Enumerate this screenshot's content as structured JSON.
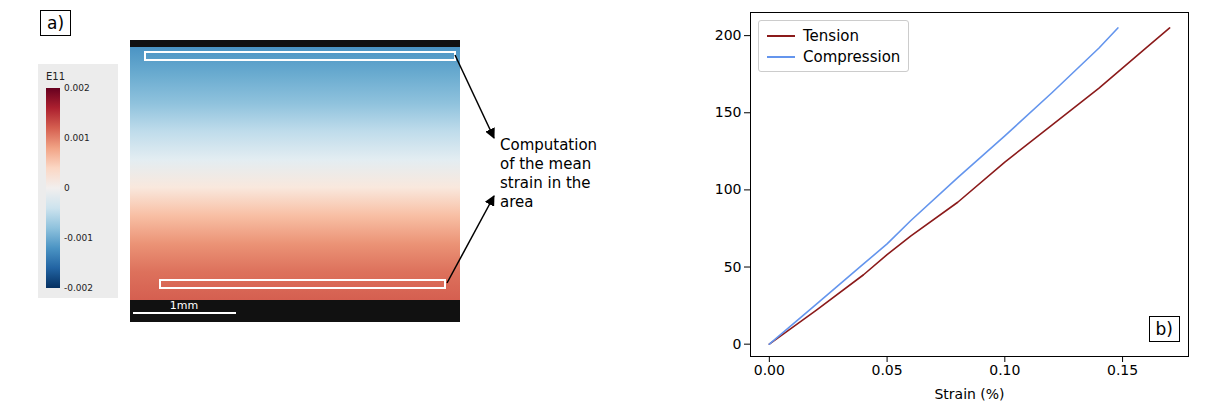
{
  "panel_a": {
    "label": "a)",
    "colorbar": {
      "title": "E11",
      "range": [
        -0.002,
        0.002
      ],
      "ticks": [
        0.002,
        0.001,
        0,
        -0.001,
        -0.002
      ]
    },
    "strain_profile_top_to_bottom": [
      -0.0012,
      -0.001,
      -0.0008,
      -0.0005,
      -0.0002,
      0.0002,
      0.0006,
      0.0009,
      0.0011,
      0.0012
    ],
    "scale_bar": "1mm",
    "annotation": "Computation of the mean strain in the area"
  },
  "chart_data": {
    "type": "line",
    "label": "b)",
    "x_label": "Strain (%)",
    "xlim": [
      -0.008,
      0.178
    ],
    "xticks": [
      {
        "value": 0,
        "label": "0.00"
      },
      {
        "value": 0.05,
        "label": "0.05"
      },
      {
        "value": 0.1,
        "label": "0.10"
      },
      {
        "value": 0.15,
        "label": "0.15"
      }
    ],
    "ylim": [
      -8,
      215
    ],
    "yticks": [
      0,
      50,
      100,
      150,
      200
    ],
    "legend": "upper left",
    "series": [
      {
        "name": "Tension",
        "color": "#8b1a1a",
        "x": [
          0,
          0.02,
          0.04,
          0.05,
          0.06,
          0.08,
          0.1,
          0.12,
          0.14,
          0.16,
          0.17
        ],
        "values": [
          0,
          22,
          45,
          58,
          70,
          92,
          118,
          142,
          166,
          192,
          205
        ]
      },
      {
        "name": "Compression",
        "color": "#6495ed",
        "x": [
          0,
          0.02,
          0.04,
          0.05,
          0.06,
          0.08,
          0.1,
          0.12,
          0.14,
          0.148
        ],
        "values": [
          0,
          26,
          52,
          65,
          80,
          108,
          135,
          163,
          192,
          205
        ]
      }
    ]
  }
}
